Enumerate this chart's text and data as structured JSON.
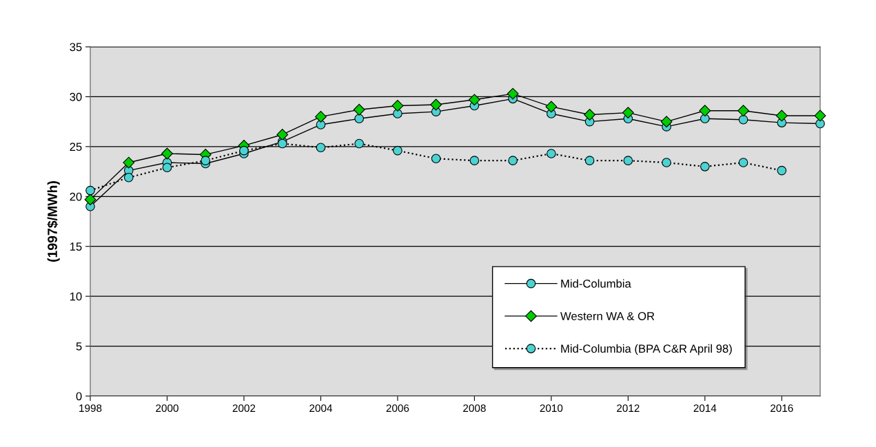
{
  "chart_data": {
    "type": "line",
    "ylabel": "(1997$/MWh)",
    "x": [
      1998,
      1999,
      2000,
      2001,
      2002,
      2003,
      2004,
      2005,
      2006,
      2007,
      2008,
      2009,
      2010,
      2011,
      2012,
      2013,
      2014,
      2015,
      2016,
      2017
    ],
    "series": [
      {
        "name": "Mid-Columbia",
        "color": "#4dd2d2",
        "marker": "circle",
        "line_style": "solid",
        "values": [
          19.0,
          22.6,
          23.4,
          23.3,
          24.3,
          25.5,
          27.2,
          27.8,
          28.3,
          28.5,
          29.1,
          29.8,
          28.3,
          27.5,
          27.8,
          27.0,
          27.8,
          27.7,
          27.4,
          27.3
        ]
      },
      {
        "name": "Western WA & OR",
        "color": "#00cc00",
        "marker": "diamond",
        "line_style": "solid",
        "values": [
          19.7,
          23.4,
          24.3,
          24.2,
          25.1,
          26.2,
          28.0,
          28.7,
          29.1,
          29.2,
          29.7,
          30.3,
          29.0,
          28.2,
          28.4,
          27.5,
          28.6,
          28.6,
          28.1,
          28.1
        ]
      },
      {
        "name": "Mid-Columbia (BPA C&R April 98)",
        "color": "#4dd2d2",
        "marker": "circle",
        "line_style": "dotted",
        "values": [
          20.6,
          21.9,
          22.9,
          23.6,
          24.6,
          25.3,
          24.9,
          25.3,
          24.6,
          23.8,
          23.6,
          23.6,
          24.3,
          23.6,
          23.6,
          23.4,
          23.0,
          23.4,
          22.6,
          null
        ]
      }
    ],
    "xlim": [
      1998,
      2017
    ],
    "xticks": [
      1998,
      2000,
      2002,
      2004,
      2006,
      2008,
      2010,
      2012,
      2014,
      2016
    ],
    "ylim": [
      0,
      35
    ],
    "yticks": [
      0,
      5,
      10,
      15,
      20,
      25,
      30,
      35
    ],
    "grid": "y",
    "legend": "bottom right"
  }
}
